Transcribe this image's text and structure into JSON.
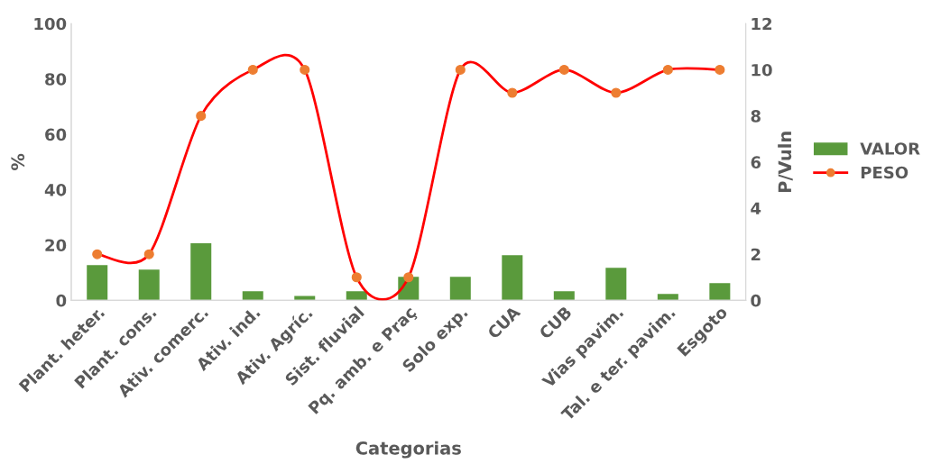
{
  "chart_data": {
    "type": "bar",
    "xlabel": "Categorias",
    "ylabel": "%",
    "y2label": "P/Vuln",
    "categories": [
      "Plant. heter.",
      "Plant. cons.",
      "Ativ. comerc.",
      "Ativ. ind.",
      "Ativ. Agríc.",
      "Sist. fluvial",
      "Pq. amb. e Praç",
      "Solo exp.",
      "CUA",
      "CUB",
      "Vias pavim.",
      "Tal. e ter. pavim.",
      "Esgoto"
    ],
    "series": [
      {
        "name": "VALOR",
        "color": "#5a9a3c",
        "values": [
          12.7,
          11.1,
          20.6,
          3.3,
          1.6,
          3.3,
          8.5,
          8.5,
          16.3,
          3.3,
          11.8,
          2.3,
          6.2
        ]
      },
      {
        "name": "PESO",
        "type": "line",
        "axis": "y2",
        "color": "#ff0000",
        "marker": "circle",
        "values": [
          2,
          2,
          8,
          10,
          10,
          1,
          1,
          10,
          9,
          10,
          9,
          10,
          10
        ]
      }
    ],
    "ylim": [
      0,
      100
    ],
    "yticks": [
      0,
      20,
      40,
      60,
      80,
      100
    ],
    "y2lim": [
      0,
      12
    ],
    "y2ticks": [
      0,
      2,
      4,
      6,
      8,
      10,
      12
    ],
    "grid": false,
    "legend": "right"
  }
}
